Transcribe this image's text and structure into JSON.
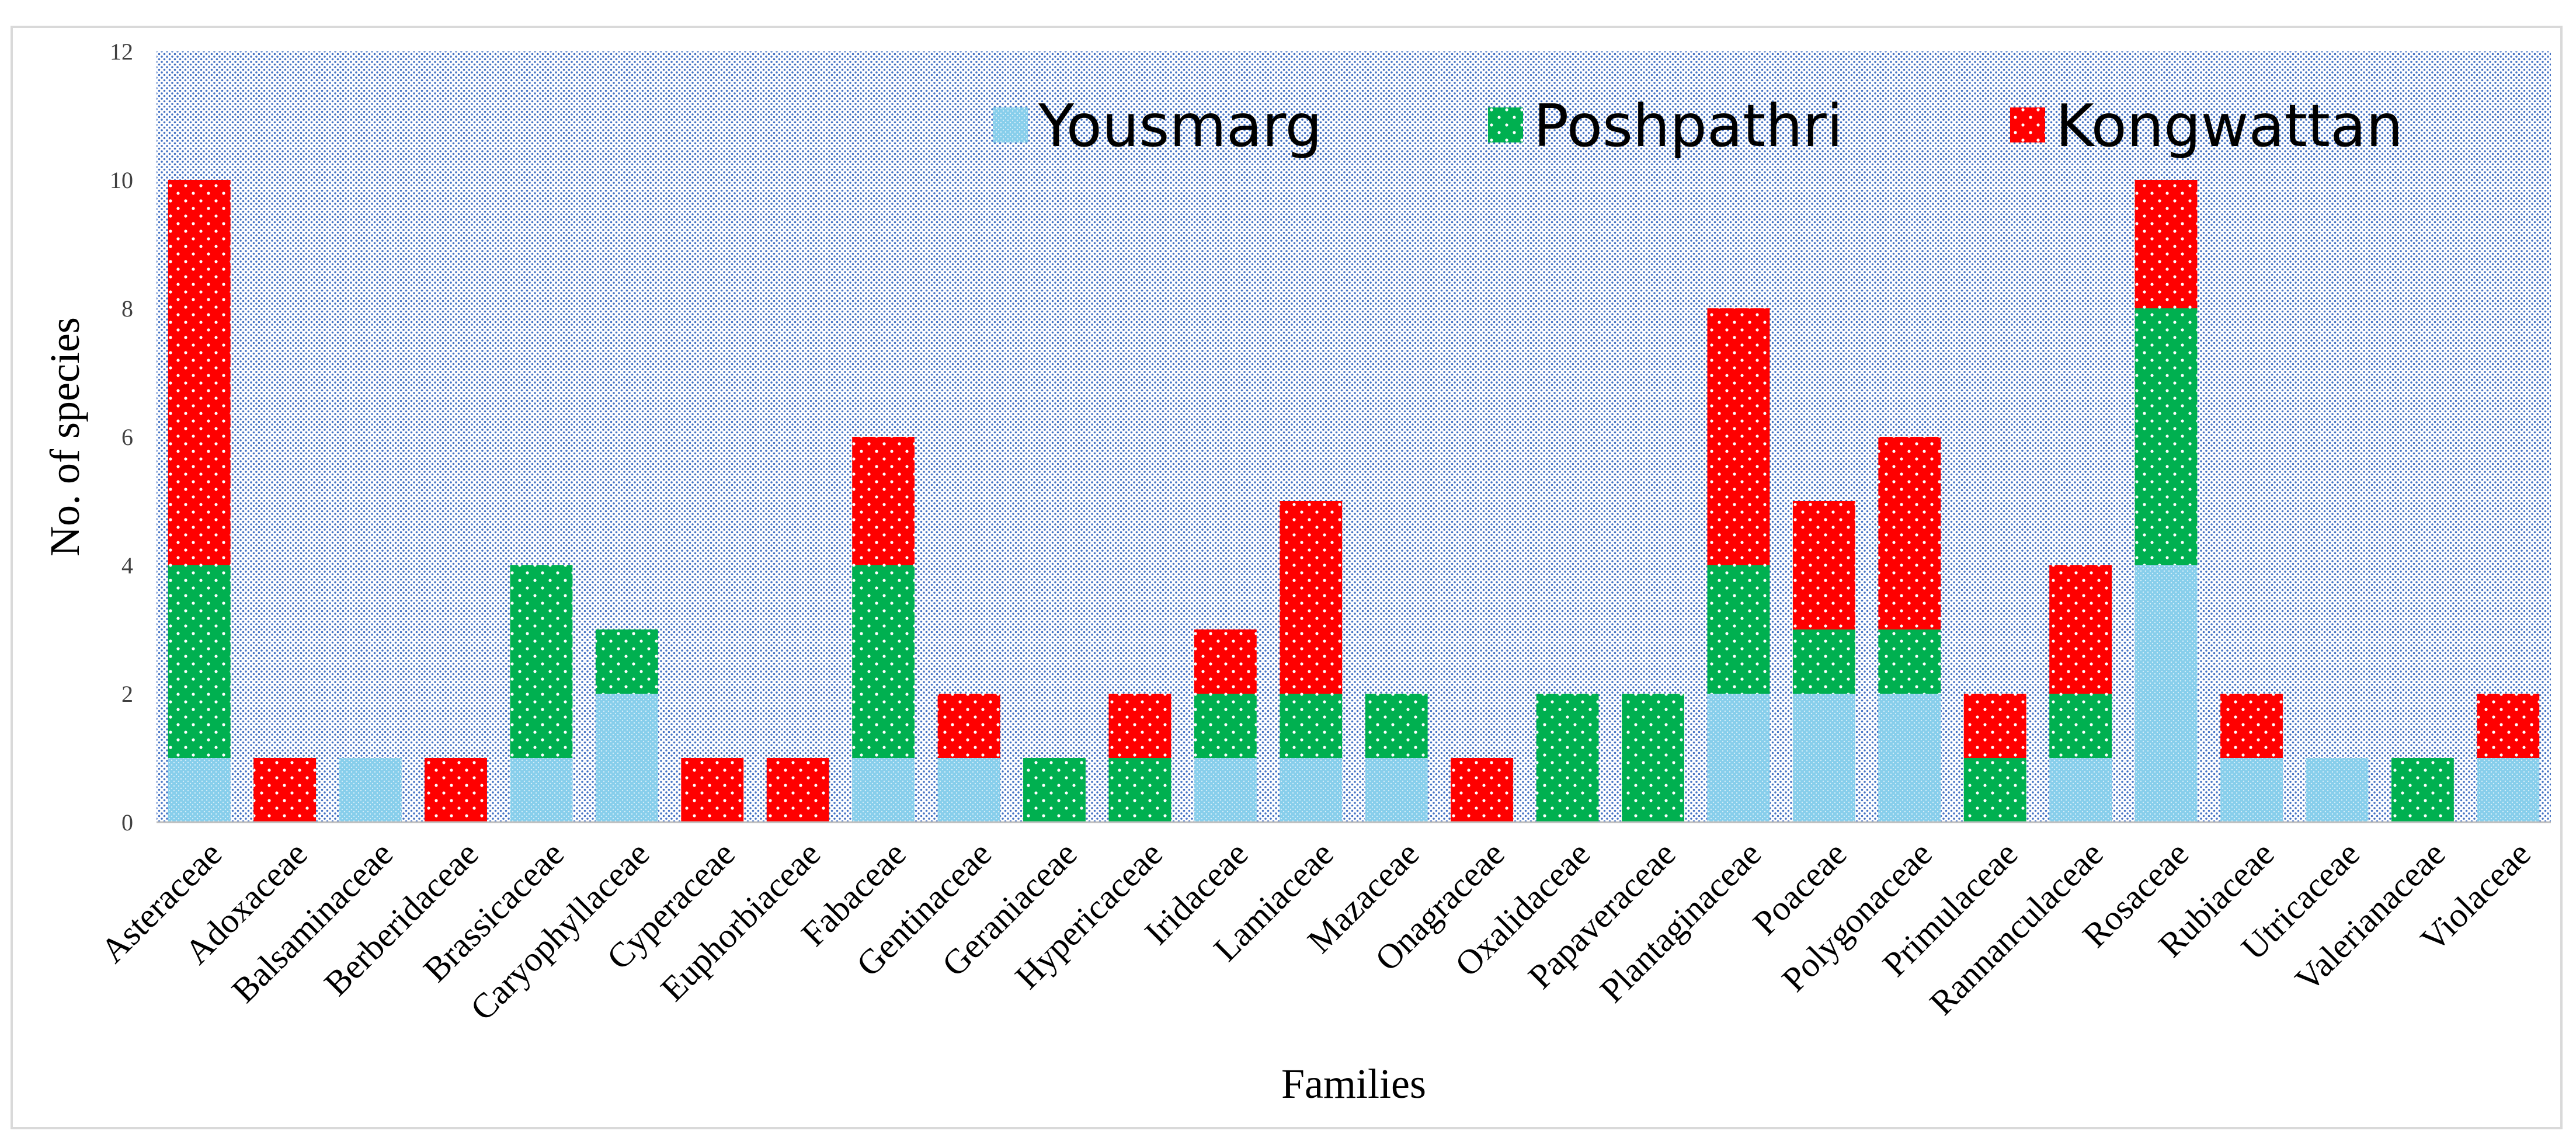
{
  "chart_data": {
    "type": "bar",
    "stacked": true,
    "title": "",
    "xlabel": "Families",
    "ylabel": "No. of species",
    "ylim": [
      0,
      12
    ],
    "yticks": [
      0,
      2,
      4,
      6,
      8,
      10,
      12
    ],
    "grid": false,
    "legend_position": "top-right",
    "categories": [
      "Asteraceae",
      "Adoxaceae",
      "Balsaminaceae",
      "Berberidaceae",
      "Brassicaceae",
      "Caryophyllaceae",
      "Cyperaceae",
      "Euphorbiaceae",
      "Fabaceae",
      "Gentinaceae",
      "Geraniaceae",
      "Hypericaceae",
      "Iridaceae",
      "Lamiaceae",
      "Mazaceae",
      "Onagraceae",
      "Oxalidaceae",
      "Papaveraceae",
      "Plantaginaceae",
      "Poaceae",
      "Polygonaceae",
      "Primulaceae",
      "Rannanculaceae",
      "Rosaceae",
      "Rubiaceae",
      "Utricaceae",
      "Valerianaceae",
      "Violaceae"
    ],
    "series": [
      {
        "name": "Yousmarg",
        "color": "#87ceeb",
        "values": [
          1,
          0,
          1,
          0,
          1,
          2,
          0,
          0,
          1,
          1,
          0,
          0,
          1,
          1,
          1,
          0,
          0,
          0,
          2,
          2,
          2,
          0,
          1,
          4,
          1,
          1,
          0,
          1
        ]
      },
      {
        "name": "Poshpathri",
        "color": "#00b050",
        "values": [
          3,
          0,
          0,
          0,
          3,
          1,
          0,
          0,
          3,
          0,
          1,
          1,
          1,
          1,
          1,
          0,
          2,
          2,
          2,
          1,
          1,
          1,
          1,
          4,
          0,
          0,
          1,
          0
        ]
      },
      {
        "name": "Kongwattan",
        "color": "#ff0000",
        "values": [
          6,
          1,
          0,
          1,
          0,
          0,
          1,
          1,
          2,
          1,
          0,
          1,
          1,
          3,
          0,
          1,
          0,
          0,
          4,
          2,
          3,
          1,
          2,
          2,
          1,
          0,
          0,
          1
        ]
      }
    ]
  }
}
